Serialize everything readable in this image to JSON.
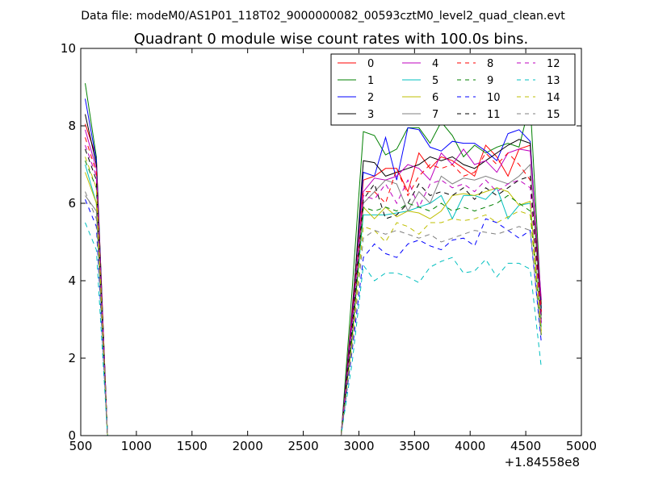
{
  "chart_data": {
    "type": "line",
    "suptitle": "Data file: modeM0/AS1P01_118T02_9000000082_00593cztM0_level2_quad_clean.evt",
    "title": "Quadrant 0 module wise count rates with 100.0s bins.",
    "xlabel": "",
    "ylabel": "",
    "x_offset_label": "+1.84558e8",
    "xlim": [
      500,
      5000
    ],
    "ylim": [
      0,
      10
    ],
    "xticks": [
      500,
      1000,
      1500,
      2000,
      2500,
      3000,
      3500,
      4000,
      4500,
      5000
    ],
    "xtick_labels": [
      "500",
      "1000",
      "1500",
      "2000",
      "2500",
      "3000",
      "3500",
      "4000",
      "4500",
      "5000"
    ],
    "yticks": [
      0,
      2,
      4,
      6,
      8,
      10
    ],
    "ytick_labels": [
      "0",
      "2",
      "4",
      "6",
      "8",
      "10"
    ],
    "legend_position": "top-right",
    "legend_columns": 4,
    "x": [
      540,
      640,
      740,
      840,
      940,
      1040,
      1140,
      1240,
      1340,
      1440,
      1540,
      1640,
      1740,
      1840,
      1940,
      2040,
      2140,
      2240,
      2340,
      2440,
      2540,
      2640,
      2740,
      2840,
      2940,
      3040,
      3140,
      3240,
      3340,
      3440,
      3540,
      3640,
      3740,
      3840,
      3940,
      4040,
      4140,
      4240,
      4340,
      4440,
      4540,
      4640
    ],
    "series": [
      {
        "name": "0",
        "color": "#ff0000",
        "dash": "solid",
        "values": [
          8.05,
          7.2,
          0,
          0,
          0,
          0,
          0,
          0,
          0,
          0,
          0,
          0,
          0,
          0,
          0,
          0,
          0,
          0,
          0,
          0,
          0,
          0,
          0,
          0,
          3.3,
          6.6,
          6.7,
          6.9,
          6.9,
          6.3,
          7.3,
          6.9,
          7.2,
          7.1,
          6.9,
          6.7,
          7.5,
          7.2,
          6.7,
          7.4,
          7.5,
          3.4
        ]
      },
      {
        "name": "1",
        "color": "#008000",
        "dash": "solid",
        "values": [
          9.1,
          7.2,
          0,
          0,
          0,
          0,
          0,
          0,
          0,
          0,
          0,
          0,
          0,
          0,
          0,
          0,
          0,
          0,
          0,
          0,
          0,
          0,
          0,
          0,
          3.8,
          7.85,
          7.75,
          7.25,
          7.4,
          7.95,
          7.95,
          7.55,
          8.1,
          7.75,
          7.2,
          7.5,
          7.3,
          7.45,
          7.55,
          7.45,
          8.6,
          3.3
        ]
      },
      {
        "name": "2",
        "color": "#0000ff",
        "dash": "solid",
        "values": [
          8.7,
          7.1,
          0,
          0,
          0,
          0,
          0,
          0,
          0,
          0,
          0,
          0,
          0,
          0,
          0,
          0,
          0,
          0,
          0,
          0,
          0,
          0,
          0,
          0,
          3.2,
          6.8,
          6.7,
          7.7,
          6.6,
          7.95,
          7.9,
          7.45,
          7.35,
          7.6,
          7.55,
          7.55,
          7.35,
          7.1,
          7.8,
          7.9,
          7.6,
          3.2
        ]
      },
      {
        "name": "3",
        "color": "#000000",
        "dash": "solid",
        "values": [
          8.3,
          7.0,
          0,
          0,
          0,
          0,
          0,
          0,
          0,
          0,
          0,
          0,
          0,
          0,
          0,
          0,
          0,
          0,
          0,
          0,
          0,
          0,
          0,
          0,
          3.1,
          7.1,
          7.05,
          6.7,
          6.8,
          6.9,
          7.0,
          7.2,
          7.1,
          7.2,
          7.0,
          6.9,
          7.1,
          7.3,
          7.5,
          7.65,
          7.55,
          3.1
        ]
      },
      {
        "name": "4",
        "color": "#bf00bf",
        "dash": "solid",
        "values": [
          7.9,
          6.9,
          0,
          0,
          0,
          0,
          0,
          0,
          0,
          0,
          0,
          0,
          0,
          0,
          0,
          0,
          0,
          0,
          0,
          0,
          0,
          0,
          0,
          0,
          3.0,
          6.3,
          6.65,
          6.6,
          6.7,
          7.0,
          6.9,
          6.6,
          7.3,
          7.0,
          7.4,
          7.0,
          7.1,
          6.8,
          7.3,
          7.4,
          7.35,
          3.5
        ]
      },
      {
        "name": "5",
        "color": "#00bfbf",
        "dash": "solid",
        "values": [
          7.0,
          6.0,
          0,
          0,
          0,
          0,
          0,
          0,
          0,
          0,
          0,
          0,
          0,
          0,
          0,
          0,
          0,
          0,
          0,
          0,
          0,
          0,
          0,
          0,
          2.6,
          5.7,
          5.7,
          5.7,
          5.75,
          5.8,
          5.9,
          6.0,
          6.2,
          5.6,
          6.2,
          6.2,
          6.1,
          6.4,
          5.6,
          5.95,
          6.0,
          2.8
        ]
      },
      {
        "name": "6",
        "color": "#bfbf00",
        "dash": "solid",
        "values": [
          6.8,
          6.0,
          0,
          0,
          0,
          0,
          0,
          0,
          0,
          0,
          0,
          0,
          0,
          0,
          0,
          0,
          0,
          0,
          0,
          0,
          0,
          0,
          0,
          0,
          2.5,
          5.9,
          5.6,
          5.9,
          5.65,
          5.8,
          5.75,
          5.6,
          5.8,
          6.2,
          6.25,
          6.2,
          6.3,
          6.4,
          6.3,
          5.95,
          6.05,
          2.7
        ]
      },
      {
        "name": "7",
        "color": "#808080",
        "dash": "solid",
        "values": [
          6.2,
          5.8,
          0,
          0,
          0,
          0,
          0,
          0,
          0,
          0,
          0,
          0,
          0,
          0,
          0,
          0,
          0,
          0,
          0,
          0,
          0,
          0,
          0,
          0,
          2.6,
          6.0,
          6.3,
          6.6,
          6.5,
          5.8,
          6.3,
          6.0,
          6.7,
          6.5,
          6.65,
          6.6,
          6.7,
          6.6,
          6.5,
          6.7,
          7.0,
          3.0
        ]
      },
      {
        "name": "8",
        "color": "#ff0000",
        "dash": "dashed",
        "values": [
          7.7,
          6.8,
          0,
          0,
          0,
          0,
          0,
          0,
          0,
          0,
          0,
          0,
          0,
          0,
          0,
          0,
          0,
          0,
          0,
          0,
          0,
          0,
          0,
          0,
          3.0,
          6.3,
          6.3,
          6.0,
          6.9,
          6.2,
          6.7,
          7.0,
          6.9,
          7.0,
          6.7,
          6.8,
          7.3,
          7.0,
          7.3,
          7.0,
          6.6,
          3.2
        ]
      },
      {
        "name": "9",
        "color": "#008000",
        "dash": "dashed",
        "values": [
          7.1,
          6.4,
          0,
          0,
          0,
          0,
          0,
          0,
          0,
          0,
          0,
          0,
          0,
          0,
          0,
          0,
          0,
          0,
          0,
          0,
          0,
          0,
          0,
          0,
          2.6,
          5.9,
          5.8,
          5.9,
          5.8,
          6.0,
          5.9,
          5.8,
          6.0,
          5.8,
          5.9,
          5.8,
          5.9,
          6.0,
          6.2,
          6.0,
          5.8,
          2.6
        ]
      },
      {
        "name": "10",
        "color": "#0000ff",
        "dash": "dashed",
        "values": [
          6.1,
          5.4,
          0,
          0,
          0,
          0,
          0,
          0,
          0,
          0,
          0,
          0,
          0,
          0,
          0,
          0,
          0,
          0,
          0,
          0,
          0,
          0,
          0,
          0,
          2.2,
          4.6,
          4.95,
          4.7,
          4.6,
          4.95,
          5.05,
          4.9,
          4.8,
          5.05,
          5.1,
          4.9,
          5.6,
          5.5,
          5.3,
          5.1,
          5.3,
          2.4
        ]
      },
      {
        "name": "11",
        "color": "#000000",
        "dash": "dashed",
        "values": [
          7.4,
          6.6,
          0,
          0,
          0,
          0,
          0,
          0,
          0,
          0,
          0,
          0,
          0,
          0,
          0,
          0,
          0,
          0,
          0,
          0,
          0,
          0,
          0,
          0,
          2.8,
          6.1,
          6.5,
          5.6,
          5.7,
          6.0,
          6.5,
          6.2,
          6.3,
          6.2,
          6.4,
          6.1,
          6.4,
          6.2,
          6.4,
          6.6,
          6.7,
          2.9
        ]
      },
      {
        "name": "12",
        "color": "#bf00bf",
        "dash": "dashed",
        "values": [
          7.5,
          6.7,
          0,
          0,
          0,
          0,
          0,
          0,
          0,
          0,
          0,
          0,
          0,
          0,
          0,
          0,
          0,
          0,
          0,
          0,
          0,
          0,
          0,
          0,
          2.9,
          6.2,
          6.1,
          6.5,
          6.0,
          6.6,
          5.9,
          6.5,
          6.6,
          6.4,
          6.5,
          6.3,
          6.6,
          6.3,
          6.5,
          6.6,
          6.4,
          2.9
        ]
      },
      {
        "name": "13",
        "color": "#00bfbf",
        "dash": "dashed",
        "values": [
          5.5,
          4.8,
          0,
          0,
          0,
          0,
          0,
          0,
          0,
          0,
          0,
          0,
          0,
          0,
          0,
          0,
          0,
          0,
          0,
          0,
          0,
          0,
          0,
          0,
          1.9,
          4.4,
          4.0,
          4.2,
          4.2,
          4.1,
          3.95,
          4.35,
          4.5,
          4.6,
          4.2,
          4.25,
          4.55,
          4.1,
          4.45,
          4.45,
          4.3,
          1.75
        ]
      },
      {
        "name": "14",
        "color": "#bfbf00",
        "dash": "dashed",
        "values": [
          7.2,
          6.4,
          0,
          0,
          0,
          0,
          0,
          0,
          0,
          0,
          0,
          0,
          0,
          0,
          0,
          0,
          0,
          0,
          0,
          0,
          0,
          0,
          0,
          0,
          2.4,
          5.4,
          5.3,
          5.0,
          5.5,
          5.4,
          5.2,
          5.5,
          5.5,
          5.6,
          5.55,
          5.6,
          5.7,
          5.5,
          5.65,
          5.8,
          5.7,
          2.6
        ]
      },
      {
        "name": "15",
        "color": "#808080",
        "dash": "dashed",
        "values": [
          6.3,
          5.6,
          0,
          0,
          0,
          0,
          0,
          0,
          0,
          0,
          0,
          0,
          0,
          0,
          0,
          0,
          0,
          0,
          0,
          0,
          0,
          0,
          0,
          0,
          2.3,
          5.1,
          5.3,
          5.2,
          5.3,
          5.2,
          5.1,
          5.2,
          5.0,
          5.1,
          5.2,
          5.3,
          5.25,
          5.2,
          5.3,
          5.4,
          5.3,
          2.5
        ]
      }
    ]
  }
}
